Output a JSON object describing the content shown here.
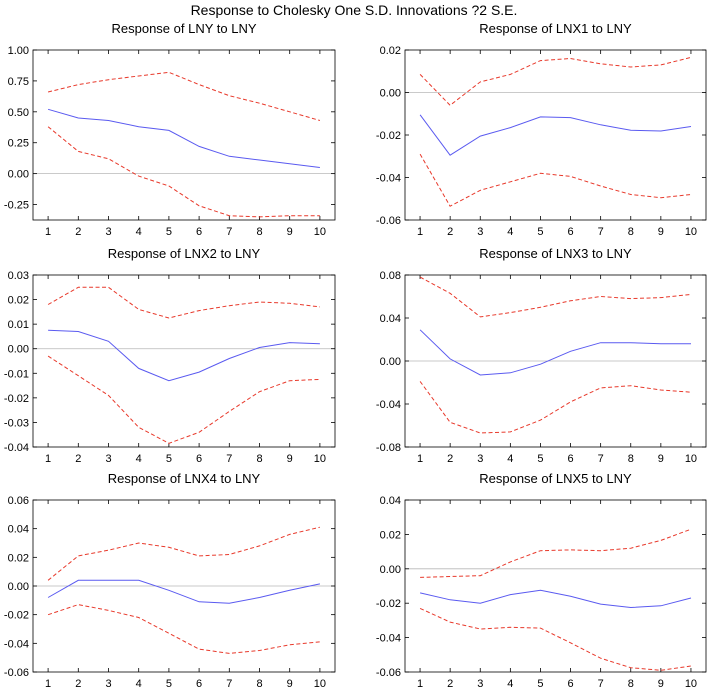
{
  "figure": {
    "title": "Response to Cholesky One S.D. Innovations ?2 S.E.",
    "colors": {
      "irf": "#5a5af0",
      "band": "#e8392b",
      "zero": "#b8b8b8",
      "frame": "#000000"
    }
  },
  "chart_data": [
    {
      "type": "line",
      "title": "Response of LNY to LNY",
      "x": [
        1,
        2,
        3,
        4,
        5,
        6,
        7,
        8,
        9,
        10
      ],
      "ylim": [
        -0.375,
        1.0
      ],
      "yticks": [
        1.0,
        0.75,
        0.5,
        0.25,
        0.0,
        -0.25
      ],
      "ytick_labels": [
        "1.00",
        "0.75",
        "0.50",
        "0.25",
        "0.00",
        "-0.25"
      ],
      "series": [
        {
          "name": "response",
          "style": "solid",
          "values": [
            0.52,
            0.45,
            0.43,
            0.38,
            0.35,
            0.22,
            0.14,
            0.11,
            0.08,
            0.05
          ]
        },
        {
          "name": "upper 2 S.E.",
          "style": "dashed",
          "values": [
            0.66,
            0.72,
            0.76,
            0.79,
            0.82,
            0.72,
            0.63,
            0.57,
            0.5,
            0.43
          ]
        },
        {
          "name": "lower 2 S.E.",
          "style": "dashed",
          "values": [
            0.38,
            0.18,
            0.12,
            -0.02,
            -0.1,
            -0.26,
            -0.34,
            -0.35,
            -0.34,
            -0.34
          ]
        }
      ]
    },
    {
      "type": "line",
      "title": "Response of LNX1 to LNY",
      "x": [
        1,
        2,
        3,
        4,
        5,
        6,
        7,
        8,
        9,
        10
      ],
      "ylim": [
        -0.06,
        0.02
      ],
      "yticks": [
        0.02,
        0.0,
        -0.02,
        -0.04,
        -0.06
      ],
      "ytick_labels": [
        "0.02",
        "0.00",
        "-0.02",
        "-0.04",
        "-0.06"
      ],
      "series": [
        {
          "name": "response",
          "style": "solid",
          "values": [
            -0.0105,
            -0.0295,
            -0.0205,
            -0.0165,
            -0.0115,
            -0.0118,
            -0.0152,
            -0.0178,
            -0.0181,
            -0.016
          ]
        },
        {
          "name": "upper 2 S.E.",
          "style": "dashed",
          "values": [
            0.0085,
            -0.006,
            0.005,
            0.0085,
            0.015,
            0.016,
            0.0135,
            0.012,
            0.013,
            0.0165
          ]
        },
        {
          "name": "lower 2 S.E.",
          "style": "dashed",
          "values": [
            -0.029,
            -0.0535,
            -0.046,
            -0.042,
            -0.038,
            -0.0395,
            -0.044,
            -0.048,
            -0.0495,
            -0.048
          ]
        }
      ]
    },
    {
      "type": "line",
      "title": "Response of LNX2 to LNY",
      "x": [
        1,
        2,
        3,
        4,
        5,
        6,
        7,
        8,
        9,
        10
      ],
      "ylim": [
        -0.04,
        0.03
      ],
      "yticks": [
        0.03,
        0.02,
        0.01,
        0.0,
        -0.01,
        -0.02,
        -0.03,
        -0.04
      ],
      "ytick_labels": [
        "0.03",
        "0.02",
        "0.01",
        "0.00",
        "-0.01",
        "-0.02",
        "-0.03",
        "-0.04"
      ],
      "series": [
        {
          "name": "response",
          "style": "solid",
          "values": [
            0.0075,
            0.007,
            0.003,
            -0.008,
            -0.013,
            -0.0095,
            -0.004,
            0.0005,
            0.0025,
            0.002
          ]
        },
        {
          "name": "upper 2 S.E.",
          "style": "dashed",
          "values": [
            0.018,
            0.025,
            0.025,
            0.016,
            0.0125,
            0.0155,
            0.0175,
            0.019,
            0.0185,
            0.017
          ]
        },
        {
          "name": "lower 2 S.E.",
          "style": "dashed",
          "values": [
            -0.003,
            -0.011,
            -0.019,
            -0.032,
            -0.0385,
            -0.034,
            -0.0255,
            -0.0175,
            -0.013,
            -0.0125
          ]
        }
      ]
    },
    {
      "type": "line",
      "title": "Response of LNX3 to LNY",
      "x": [
        1,
        2,
        3,
        4,
        5,
        6,
        7,
        8,
        9,
        10
      ],
      "ylim": [
        -0.08,
        0.08
      ],
      "yticks": [
        0.08,
        0.04,
        0.0,
        -0.04,
        -0.08
      ],
      "ytick_labels": [
        "0.08",
        "0.04",
        "0.00",
        "-0.04",
        "-0.08"
      ],
      "series": [
        {
          "name": "response",
          "style": "solid",
          "values": [
            0.029,
            0.002,
            -0.013,
            -0.011,
            -0.003,
            0.009,
            0.017,
            0.017,
            0.016,
            0.016
          ]
        },
        {
          "name": "upper 2 S.E.",
          "style": "dashed",
          "values": [
            0.078,
            0.063,
            0.041,
            0.045,
            0.05,
            0.056,
            0.06,
            0.058,
            0.059,
            0.062
          ]
        },
        {
          "name": "lower 2 S.E.",
          "style": "dashed",
          "values": [
            -0.019,
            -0.057,
            -0.067,
            -0.066,
            -0.055,
            -0.038,
            -0.025,
            -0.023,
            -0.027,
            -0.029
          ]
        }
      ]
    },
    {
      "type": "line",
      "title": "Response of LNX4 to LNY",
      "x": [
        1,
        2,
        3,
        4,
        5,
        6,
        7,
        8,
        9,
        10
      ],
      "ylim": [
        -0.06,
        0.06
      ],
      "yticks": [
        0.06,
        0.04,
        0.02,
        0.0,
        -0.02,
        -0.04,
        -0.06
      ],
      "ytick_labels": [
        "0.06",
        "0.04",
        "0.02",
        "0.00",
        "-0.02",
        "-0.04",
        "-0.06"
      ],
      "series": [
        {
          "name": "response",
          "style": "solid",
          "values": [
            -0.008,
            0.004,
            0.004,
            0.004,
            -0.003,
            -0.011,
            -0.012,
            -0.008,
            -0.003,
            0.0015
          ]
        },
        {
          "name": "upper 2 S.E.",
          "style": "dashed",
          "values": [
            0.004,
            0.021,
            0.025,
            0.03,
            0.027,
            0.021,
            0.022,
            0.028,
            0.036,
            0.041
          ]
        },
        {
          "name": "lower 2 S.E.",
          "style": "dashed",
          "values": [
            -0.02,
            -0.013,
            -0.017,
            -0.022,
            -0.033,
            -0.044,
            -0.047,
            -0.045,
            -0.041,
            -0.039
          ]
        }
      ]
    },
    {
      "type": "line",
      "title": "Response of LNX5 to LNY",
      "x": [
        1,
        2,
        3,
        4,
        5,
        6,
        7,
        8,
        9,
        10
      ],
      "ylim": [
        -0.06,
        0.04
      ],
      "yticks": [
        0.04,
        0.02,
        0.0,
        -0.02,
        -0.04,
        -0.06
      ],
      "ytick_labels": [
        "0.04",
        "0.02",
        "0.00",
        "-0.02",
        "-0.04",
        "-0.06"
      ],
      "series": [
        {
          "name": "response",
          "style": "solid",
          "values": [
            -0.014,
            -0.018,
            -0.02,
            -0.015,
            -0.0125,
            -0.016,
            -0.0205,
            -0.0225,
            -0.0215,
            -0.017
          ]
        },
        {
          "name": "upper 2 S.E.",
          "style": "dashed",
          "values": [
            -0.005,
            -0.0045,
            -0.004,
            0.004,
            0.0105,
            0.011,
            0.0105,
            0.012,
            0.0165,
            0.023
          ]
        },
        {
          "name": "lower 2 S.E.",
          "style": "dashed",
          "values": [
            -0.023,
            -0.031,
            -0.035,
            -0.034,
            -0.0345,
            -0.043,
            -0.052,
            -0.0575,
            -0.059,
            -0.0565
          ]
        }
      ]
    }
  ]
}
